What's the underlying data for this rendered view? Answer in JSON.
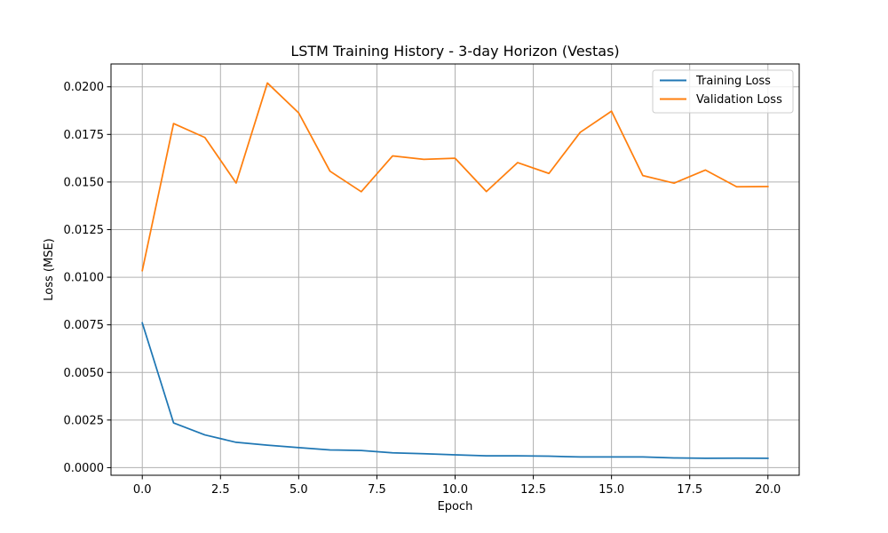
{
  "chart_data": {
    "type": "line",
    "title": "LSTM Training History - 3-day Horizon (Vestas)",
    "xlabel": "Epoch",
    "ylabel": "Loss (MSE)",
    "xlim": [
      -1.0,
      21.0
    ],
    "ylim": [
      -0.0004,
      0.0212
    ],
    "grid": true,
    "legend_position": "top-right",
    "x_ticks": [
      0.0,
      2.5,
      5.0,
      7.5,
      10.0,
      12.5,
      15.0,
      17.5,
      20.0
    ],
    "x_tick_labels": [
      "0.0",
      "2.5",
      "5.0",
      "7.5",
      "10.0",
      "12.5",
      "15.0",
      "17.5",
      "20.0"
    ],
    "y_ticks": [
      0.0,
      0.0025,
      0.005,
      0.0075,
      0.01,
      0.0125,
      0.015,
      0.0175,
      0.02
    ],
    "y_tick_labels": [
      "0.0000",
      "0.0025",
      "0.0050",
      "0.0075",
      "0.0100",
      "0.0125",
      "0.0150",
      "0.0175",
      "0.0200"
    ],
    "x": [
      0,
      1,
      2,
      3,
      4,
      5,
      6,
      7,
      8,
      9,
      10,
      11,
      12,
      13,
      14,
      15,
      16,
      17,
      18,
      19,
      20
    ],
    "series": [
      {
        "name": "Training Loss",
        "color": "#1f77b4",
        "values": [
          0.0076,
          0.00235,
          0.00172,
          0.00133,
          0.00118,
          0.00105,
          0.00093,
          0.0009,
          0.00078,
          0.00073,
          0.00067,
          0.00062,
          0.00062,
          0.0006,
          0.00056,
          0.00056,
          0.00056,
          0.00051,
          0.00049,
          0.0005,
          0.00049
        ]
      },
      {
        "name": "Validation Loss",
        "color": "#ff7f0e",
        "values": [
          0.01035,
          0.01807,
          0.01734,
          0.01495,
          0.0202,
          0.01863,
          0.01557,
          0.01449,
          0.01637,
          0.01619,
          0.01625,
          0.0145,
          0.01602,
          0.01545,
          0.01761,
          0.01872,
          0.01534,
          0.01494,
          0.01563,
          0.01475,
          0.01476
        ]
      }
    ]
  }
}
